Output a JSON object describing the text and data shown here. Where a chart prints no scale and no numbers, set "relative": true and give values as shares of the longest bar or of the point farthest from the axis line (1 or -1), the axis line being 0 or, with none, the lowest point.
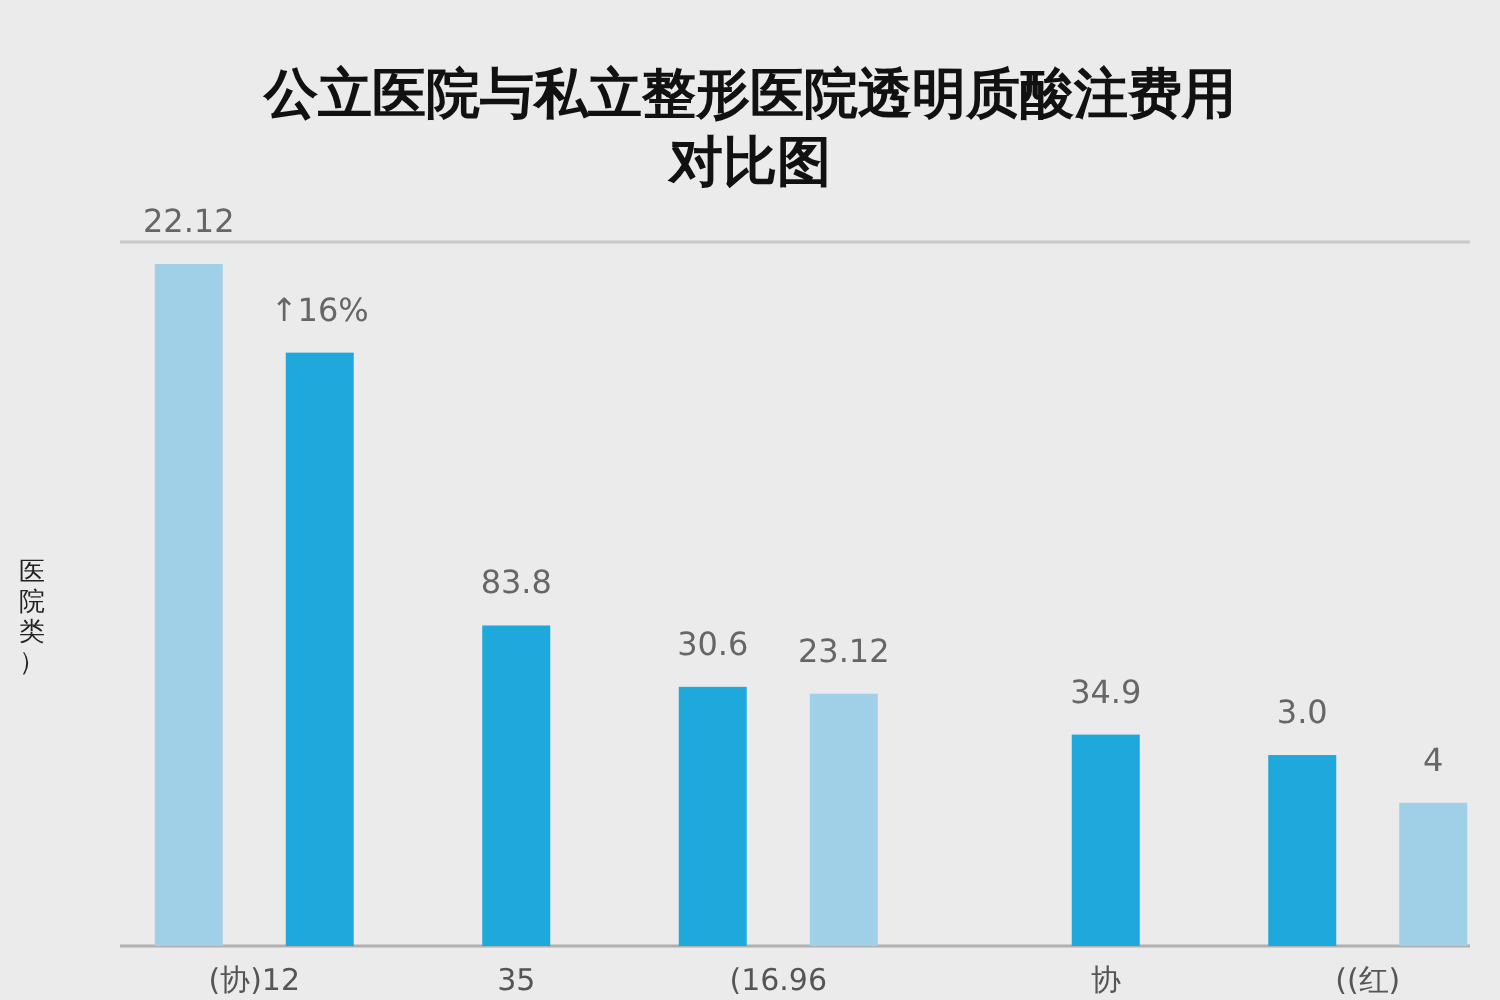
{
  "chart_data": {
    "type": "bar",
    "title": "公立医院与私立整形医院透明质酸注费用对比图",
    "ylabel": "医院类）",
    "relative": true,
    "categories": [
      null,
      "(协)12",
      null,
      null,
      null,
      "35",
      null,
      null,
      null,
      "(16.96",
      null,
      null,
      null,
      null,
      "协",
      null,
      null,
      null,
      "((红)",
      null
    ],
    "values": [
      1,
      null,
      0.87,
      null,
      null,
      0.47,
      null,
      null,
      0.38,
      null,
      0.37,
      null,
      null,
      null,
      0.31,
      null,
      null,
      0.28,
      null,
      0.21
    ],
    "colors": [
      "#9fd0e8",
      null,
      "#1fa8dc",
      null,
      null,
      "#1fa8dc",
      null,
      null,
      "#1fa8dc",
      null,
      "#9fd0e8",
      null,
      null,
      null,
      "#1fa8dc",
      null,
      null,
      "#1fa8dc",
      null,
      "#9fd0e8"
    ],
    "annotations": [
      "22.12",
      "↑16%",
      "83.8",
      "30.6",
      "23.12",
      "34.9",
      "3.0",
      "4"
    ]
  }
}
